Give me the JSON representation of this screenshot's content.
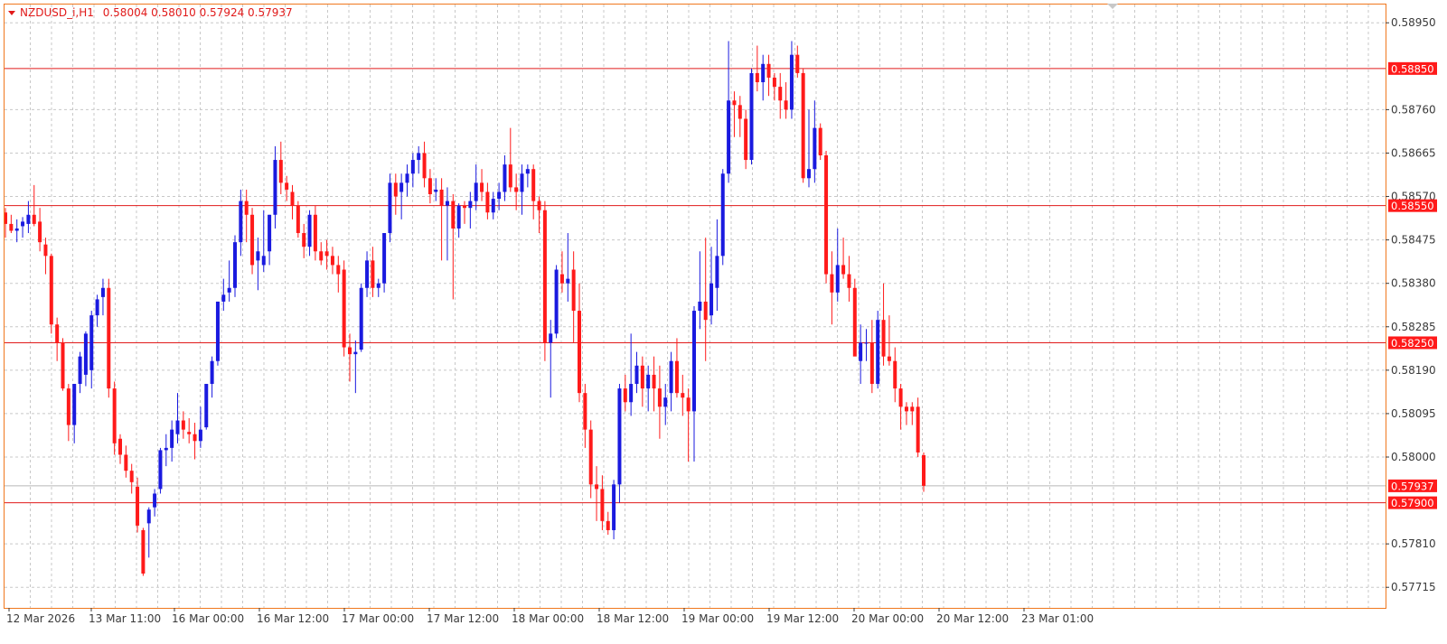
{
  "header": {
    "symbol": "NZDUSD_i,H1",
    "ohlc": "0.58004 0.58010 0.57924 0.57937"
  },
  "colors": {
    "bull": "#1a1adf",
    "bear": "#ff1a1a",
    "hline": "#e11a1a",
    "grid": "#c8c8c8",
    "frame": "#f0781e",
    "tag_bg": "#ff1a1a",
    "text": "#3a3a3a"
  },
  "chart_data": {
    "type": "candlestick",
    "timeframe": "H1",
    "price_ticks": [
      0.5895,
      0.5876,
      0.58665,
      0.5857,
      0.58475,
      0.5838,
      0.58285,
      0.5819,
      0.58095,
      0.58,
      0.5781,
      0.57715
    ],
    "price_tick_labels": [
      "0.58950",
      "0.58760",
      "0.58665",
      "0.58570",
      "0.58475",
      "0.58380",
      "0.58285",
      "0.58190",
      "0.58095",
      "0.58000",
      "0.57810",
      "0.57715"
    ],
    "ylim": [
      0.5767,
      0.5899
    ],
    "time_labels": [
      "12 Mar 2026",
      "13 Mar 11:00",
      "16 Mar 00:00",
      "16 Mar 12:00",
      "17 Mar 00:00",
      "17 Mar 12:00",
      "18 Mar 00:00",
      "18 Mar 12:00",
      "19 Mar 00:00",
      "19 Mar 12:00",
      "20 Mar 00:00",
      "20 Mar 12:00",
      "23 Mar 01:00"
    ],
    "horizontal_lines": [
      {
        "price": 0.5885,
        "label": "0.58850"
      },
      {
        "price": 0.5855,
        "label": "0.58550"
      },
      {
        "price": 0.5825,
        "label": "0.58250"
      },
      {
        "price": 0.579,
        "label": "0.57900"
      }
    ],
    "current_price": {
      "price": 0.57937,
      "label": "0.57937"
    },
    "candles": [
      [
        0.58535,
        0.58545,
        0.5848,
        0.5851
      ],
      [
        0.5851,
        0.5853,
        0.5849,
        0.58495
      ],
      [
        0.58495,
        0.5852,
        0.5847,
        0.585
      ],
      [
        0.58505,
        0.58525,
        0.5848,
        0.58515
      ],
      [
        0.5851,
        0.5856,
        0.5849,
        0.5853
      ],
      [
        0.5853,
        0.58595,
        0.58505,
        0.5851
      ],
      [
        0.58515,
        0.58545,
        0.5845,
        0.5847
      ],
      [
        0.58465,
        0.5848,
        0.584,
        0.5844
      ],
      [
        0.5844,
        0.58445,
        0.5827,
        0.5829
      ],
      [
        0.5829,
        0.58305,
        0.5821,
        0.5825
      ],
      [
        0.5825,
        0.5826,
        0.58145,
        0.5815
      ],
      [
        0.5815,
        0.5816,
        0.58035,
        0.5807
      ],
      [
        0.5807,
        0.5816,
        0.5803,
        0.5816
      ],
      [
        0.5816,
        0.5823,
        0.5814,
        0.5822
      ],
      [
        0.5818,
        0.58275,
        0.58155,
        0.5827
      ],
      [
        0.5819,
        0.5832,
        0.5815,
        0.5831
      ],
      [
        0.5831,
        0.58355,
        0.58285,
        0.58345
      ],
      [
        0.5835,
        0.5839,
        0.5831,
        0.5837
      ],
      [
        0.5837,
        0.5839,
        0.5813,
        0.5815
      ],
      [
        0.5815,
        0.58165,
        0.58005,
        0.5803
      ],
      [
        0.5804,
        0.5805,
        0.57985,
        0.58005
      ],
      [
        0.58005,
        0.58025,
        0.57955,
        0.5797
      ],
      [
        0.5797,
        0.57985,
        0.5792,
        0.57945
      ],
      [
        0.57935,
        0.57955,
        0.57835,
        0.5785
      ],
      [
        0.5784,
        0.57845,
        0.5774,
        0.57745
      ],
      [
        0.57855,
        0.5789,
        0.5778,
        0.57885
      ],
      [
        0.5789,
        0.5793,
        0.5787,
        0.5792
      ],
      [
        0.5793,
        0.5802,
        0.5792,
        0.58015
      ],
      [
        0.58015,
        0.5805,
        0.5798,
        0.5802
      ],
      [
        0.5802,
        0.5808,
        0.5799,
        0.5806
      ],
      [
        0.5805,
        0.5814,
        0.5803,
        0.5808
      ],
      [
        0.5808,
        0.581,
        0.5804,
        0.5806
      ],
      [
        0.58055,
        0.58085,
        0.5803,
        0.5805
      ],
      [
        0.5805,
        0.58075,
        0.57995,
        0.58035
      ],
      [
        0.58035,
        0.5811,
        0.5802,
        0.5806
      ],
      [
        0.58065,
        0.5816,
        0.5806,
        0.5816
      ],
      [
        0.5816,
        0.5822,
        0.5813,
        0.5821
      ],
      [
        0.5821,
        0.5834,
        0.582,
        0.5834
      ],
      [
        0.5834,
        0.5839,
        0.5832,
        0.58355
      ],
      [
        0.5836,
        0.5843,
        0.5834,
        0.5837
      ],
      [
        0.5837,
        0.58485,
        0.5835,
        0.5847
      ],
      [
        0.5847,
        0.58585,
        0.5844,
        0.5856
      ],
      [
        0.5856,
        0.58585,
        0.5847,
        0.5853
      ],
      [
        0.5853,
        0.58545,
        0.584,
        0.5842
      ],
      [
        0.5843,
        0.5848,
        0.58365,
        0.5845
      ],
      [
        0.5842,
        0.5854,
        0.58405,
        0.5844
      ],
      [
        0.5845,
        0.5853,
        0.5842,
        0.5853
      ],
      [
        0.5853,
        0.5868,
        0.585,
        0.5865
      ],
      [
        0.5865,
        0.5869,
        0.58575,
        0.586
      ],
      [
        0.586,
        0.58615,
        0.5856,
        0.58585
      ],
      [
        0.5858,
        0.58595,
        0.5852,
        0.5855
      ],
      [
        0.5855,
        0.5856,
        0.5848,
        0.5849
      ],
      [
        0.5849,
        0.5851,
        0.58435,
        0.5846
      ],
      [
        0.5846,
        0.5854,
        0.5844,
        0.5853
      ],
      [
        0.5853,
        0.5855,
        0.5843,
        0.5845
      ],
      [
        0.5845,
        0.5847,
        0.5842,
        0.5843
      ],
      [
        0.5845,
        0.58475,
        0.5841,
        0.5844
      ],
      [
        0.5844,
        0.5846,
        0.584,
        0.5842
      ],
      [
        0.5842,
        0.5844,
        0.5836,
        0.584
      ],
      [
        0.5841,
        0.5843,
        0.5822,
        0.5824
      ],
      [
        0.5824,
        0.5827,
        0.58165,
        0.58225
      ],
      [
        0.58225,
        0.58255,
        0.5814,
        0.5823
      ],
      [
        0.58235,
        0.5838,
        0.5823,
        0.5837
      ],
      [
        0.5837,
        0.5845,
        0.5835,
        0.5843
      ],
      [
        0.5843,
        0.5846,
        0.5835,
        0.5837
      ],
      [
        0.5837,
        0.5839,
        0.5835,
        0.5838
      ],
      [
        0.5838,
        0.5849,
        0.5836,
        0.5849
      ],
      [
        0.5849,
        0.5862,
        0.5847,
        0.586
      ],
      [
        0.586,
        0.5862,
        0.5853,
        0.5857
      ],
      [
        0.5858,
        0.5862,
        0.5852,
        0.586
      ],
      [
        0.586,
        0.5864,
        0.5857,
        0.5862
      ],
      [
        0.5862,
        0.58665,
        0.5859,
        0.5865
      ],
      [
        0.5865,
        0.5868,
        0.5862,
        0.58665
      ],
      [
        0.58665,
        0.5869,
        0.5859,
        0.5861
      ],
      [
        0.5861,
        0.5863,
        0.58555,
        0.58575
      ],
      [
        0.5858,
        0.5861,
        0.5856,
        0.58585
      ],
      [
        0.58585,
        0.5861,
        0.5843,
        0.5855
      ],
      [
        0.5855,
        0.5859,
        0.5843,
        0.5856
      ],
      [
        0.5856,
        0.58575,
        0.58345,
        0.585
      ],
      [
        0.585,
        0.58555,
        0.5848,
        0.5855
      ],
      [
        0.5855,
        0.5856,
        0.5851,
        0.58545
      ],
      [
        0.58545,
        0.5858,
        0.585,
        0.5856
      ],
      [
        0.5856,
        0.5864,
        0.5854,
        0.586
      ],
      [
        0.586,
        0.5863,
        0.5856,
        0.5858
      ],
      [
        0.5858,
        0.586,
        0.5852,
        0.58535
      ],
      [
        0.58535,
        0.5858,
        0.5852,
        0.58565
      ],
      [
        0.58565,
        0.586,
        0.5854,
        0.5858
      ],
      [
        0.5858,
        0.5866,
        0.5856,
        0.5864
      ],
      [
        0.5864,
        0.5872,
        0.5858,
        0.5859
      ],
      [
        0.5859,
        0.5862,
        0.5854,
        0.5858
      ],
      [
        0.5858,
        0.5864,
        0.5853,
        0.5862
      ],
      [
        0.5862,
        0.5864,
        0.5859,
        0.5863
      ],
      [
        0.5863,
        0.5864,
        0.5852,
        0.5856
      ],
      [
        0.5856,
        0.5857,
        0.5849,
        0.5854
      ],
      [
        0.5854,
        0.5856,
        0.5821,
        0.5825
      ],
      [
        0.5825,
        0.583,
        0.5813,
        0.5827
      ],
      [
        0.5827,
        0.5842,
        0.5826,
        0.5841
      ],
      [
        0.584,
        0.5845,
        0.5836,
        0.5838
      ],
      [
        0.5838,
        0.5849,
        0.5834,
        0.5839
      ],
      [
        0.5841,
        0.5845,
        0.5825,
        0.5832
      ],
      [
        0.5832,
        0.5838,
        0.5812,
        0.5814
      ],
      [
        0.5814,
        0.5816,
        0.5802,
        0.5806
      ],
      [
        0.5806,
        0.5808,
        0.5791,
        0.5794
      ],
      [
        0.5794,
        0.5798,
        0.5786,
        0.5793
      ],
      [
        0.5793,
        0.5796,
        0.5784,
        0.5786
      ],
      [
        0.5786,
        0.5788,
        0.5783,
        0.5784
      ],
      [
        0.5784,
        0.5795,
        0.5782,
        0.5794
      ],
      [
        0.5794,
        0.5816,
        0.579,
        0.5815
      ],
      [
        0.5815,
        0.5818,
        0.581,
        0.5812
      ],
      [
        0.5812,
        0.5827,
        0.5809,
        0.5816
      ],
      [
        0.5816,
        0.5823,
        0.5814,
        0.582
      ],
      [
        0.582,
        0.5822,
        0.5811,
        0.5815
      ],
      [
        0.5815,
        0.582,
        0.581,
        0.5818
      ],
      [
        0.5818,
        0.5822,
        0.581,
        0.5815
      ],
      [
        0.5815,
        0.582,
        0.5804,
        0.5811
      ],
      [
        0.5811,
        0.5816,
        0.5807,
        0.5813
      ],
      [
        0.5814,
        0.5823,
        0.581,
        0.5821
      ],
      [
        0.5821,
        0.5826,
        0.5813,
        0.5814
      ],
      [
        0.5814,
        0.5818,
        0.5809,
        0.5813
      ],
      [
        0.5813,
        0.5815,
        0.5799,
        0.581
      ],
      [
        0.581,
        0.5833,
        0.5799,
        0.5832
      ],
      [
        0.5832,
        0.5845,
        0.5828,
        0.5834
      ],
      [
        0.5834,
        0.5848,
        0.5821,
        0.583
      ],
      [
        0.5831,
        0.5846,
        0.5829,
        0.5838
      ],
      [
        0.5837,
        0.5852,
        0.5832,
        0.5844
      ],
      [
        0.5844,
        0.5863,
        0.5842,
        0.5862
      ],
      [
        0.5862,
        0.5891,
        0.586,
        0.5878
      ],
      [
        0.5878,
        0.588,
        0.587,
        0.5877
      ],
      [
        0.5877,
        0.5879,
        0.587,
        0.5874
      ],
      [
        0.5874,
        0.5876,
        0.5863,
        0.5865
      ],
      [
        0.5865,
        0.5885,
        0.5864,
        0.5884
      ],
      [
        0.5884,
        0.589,
        0.588,
        0.5882
      ],
      [
        0.5882,
        0.5888,
        0.5878,
        0.5886
      ],
      [
        0.5886,
        0.5888,
        0.5879,
        0.5883
      ],
      [
        0.5883,
        0.5884,
        0.5878,
        0.5881
      ],
      [
        0.5881,
        0.5884,
        0.5874,
        0.5878
      ],
      [
        0.5878,
        0.5882,
        0.5874,
        0.5876
      ],
      [
        0.5876,
        0.5891,
        0.5874,
        0.5888
      ],
      [
        0.5888,
        0.589,
        0.5883,
        0.5884
      ],
      [
        0.5884,
        0.5885,
        0.586,
        0.5861
      ],
      [
        0.5861,
        0.5876,
        0.5859,
        0.5863
      ],
      [
        0.5863,
        0.5878,
        0.586,
        0.5872
      ],
      [
        0.5872,
        0.5873,
        0.5865,
        0.5866
      ],
      [
        0.5866,
        0.5867,
        0.5838,
        0.584
      ],
      [
        0.584,
        0.5845,
        0.5829,
        0.5836
      ],
      [
        0.5836,
        0.585,
        0.5834,
        0.5842
      ],
      [
        0.5842,
        0.5848,
        0.5839,
        0.584
      ],
      [
        0.584,
        0.5844,
        0.5834,
        0.5837
      ],
      [
        0.5837,
        0.5839,
        0.5823,
        0.5822
      ],
      [
        0.5821,
        0.5829,
        0.5816,
        0.5825
      ],
      [
        0.5825,
        0.5828,
        0.5821,
        0.5825
      ],
      [
        0.5825,
        0.583,
        0.5814,
        0.5816
      ],
      [
        0.5816,
        0.5832,
        0.5815,
        0.583
      ],
      [
        0.583,
        0.5838,
        0.582,
        0.5822
      ],
      [
        0.5822,
        0.5831,
        0.582,
        0.5821
      ],
      [
        0.5821,
        0.5824,
        0.5812,
        0.5815
      ],
      [
        0.5815,
        0.5816,
        0.5806,
        0.5811
      ],
      [
        0.5811,
        0.5812,
        0.5807,
        0.581
      ],
      [
        0.5811,
        0.5812,
        0.5807,
        0.581
      ],
      [
        0.5811,
        0.5813,
        0.58,
        0.5801
      ],
      [
        0.58004,
        0.5801,
        0.57924,
        0.57937
      ]
    ]
  }
}
